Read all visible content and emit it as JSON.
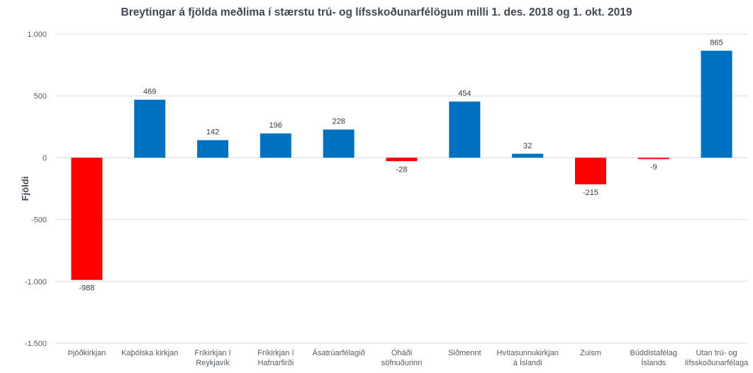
{
  "chart_data": {
    "type": "bar",
    "title": "Breytingar á fjölda meðlima í stærstu trú- og lífsskoðunarfélögum milli 1. des. 2018 og 1. okt. 2019",
    "xlabel": "",
    "ylabel": "Fjöldi",
    "ylim": [
      -1500,
      1000
    ],
    "yticks": [
      1000,
      500,
      0,
      -500,
      -1000,
      -1500
    ],
    "ytick_labels": [
      "1.000",
      "500",
      "0",
      "-500",
      "-1.000",
      "-1.500"
    ],
    "grid": true,
    "legend": "none",
    "colors": {
      "positive": "#0070c0",
      "negative": "#ff0000",
      "grid": "#d9d9d9"
    },
    "categories": [
      [
        "Þjóðkirkjan"
      ],
      [
        "Kaþólska kirkjan"
      ],
      [
        "Fríkirkjan í",
        "Reykjavík"
      ],
      [
        "Fríkirkjan í",
        "Hafnarfirði"
      ],
      [
        "Ásatrúarfélagið"
      ],
      [
        "Óháði",
        "söfnuðurinn"
      ],
      [
        "Siðmennt"
      ],
      [
        "Hvítasunnukirkjan",
        "á Íslandi"
      ],
      [
        "Zuism"
      ],
      [
        "Búddistafélag",
        "Íslands"
      ],
      [
        "Utan trú- og",
        "lífsskoðunarfélaga"
      ]
    ],
    "values": [
      -988,
      469,
      142,
      196,
      228,
      -28,
      454,
      32,
      -215,
      -9,
      865
    ],
    "value_labels": [
      "-988",
      "469",
      "142",
      "196",
      "228",
      "-28",
      "454",
      "32",
      "-215",
      "-9",
      "865"
    ]
  }
}
